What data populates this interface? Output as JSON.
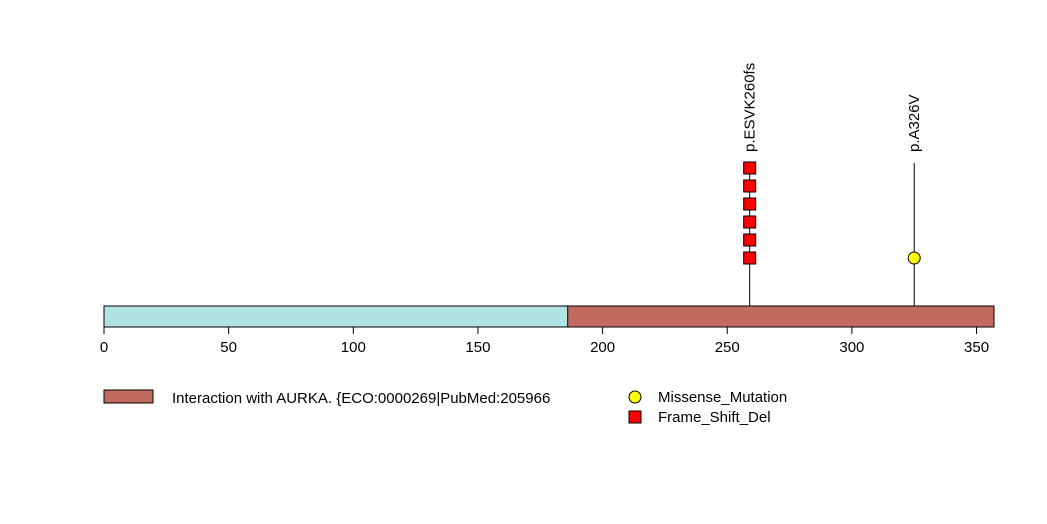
{
  "chart_data": {
    "type": "lollipop",
    "xlim": [
      0,
      357
    ],
    "x_ticks": [
      0,
      50,
      100,
      150,
      200,
      250,
      300,
      350
    ],
    "protein_length": 357,
    "protein_color": "#b0e4e4",
    "domains": [
      {
        "start": 186,
        "end": 357,
        "color": "#c26a60",
        "label": "Interaction with AURKA. {ECO:0000269|PubMed:205966"
      }
    ],
    "mutations": [
      {
        "position": 259,
        "label": "p.ESVK260fs",
        "type": "Frame_Shift_Del",
        "count": 6
      },
      {
        "position": 325,
        "label": "p.A326V",
        "type": "Missense_Mutation",
        "count": 1
      }
    ],
    "legend": [
      {
        "label": "Missense_Mutation",
        "shape": "circle",
        "color": "#ffff00"
      },
      {
        "label": "Frame_Shift_Del",
        "shape": "square",
        "color": "#ff0000"
      }
    ]
  }
}
